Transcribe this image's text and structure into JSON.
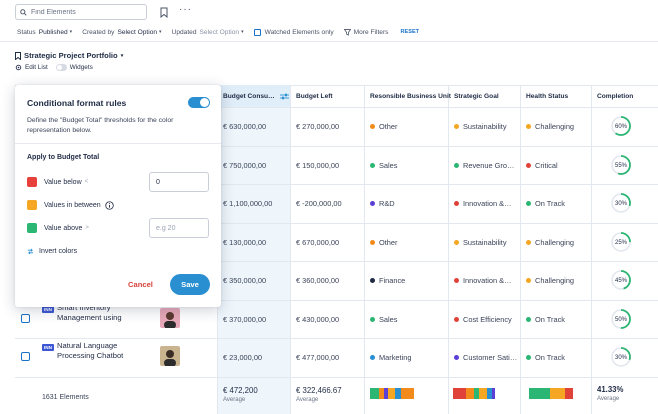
{
  "search": {
    "placeholder": "Find Elements"
  },
  "filters": {
    "status_label": "Status",
    "status_value": "Published",
    "created_label": "Created by",
    "created_value": "Select Option",
    "updated_label": "Updated",
    "updated_value": "Select Option",
    "watched_label": "Watched Elements only",
    "more_label": "More Filters",
    "reset_label": "RESET"
  },
  "portfolio": {
    "title": "Strategic Project Portfolio",
    "edit_label": "Edit List",
    "widgets_label": "Widgets"
  },
  "columns": {
    "budget_consumed": "Budget Consu…",
    "budget_left": "Budget Left",
    "business_unit": "Resonsible Business Unit",
    "strategic_goal": "Strategic Goal",
    "health": "Health Status",
    "completion": "Completion"
  },
  "rows": [
    {
      "consumed": "€ 630,000,00",
      "left": "€ 270,000,00",
      "unit": "Other",
      "unit_color": "#f28b1c",
      "goal": "Sustainability",
      "goal_color": "#f5a623",
      "health": "Challenging",
      "health_color": "#f5a623",
      "completion": "60%",
      "completion_value": 60
    },
    {
      "consumed": "€ 750,000,00",
      "left": "€ 150,000,00",
      "unit": "Sales",
      "unit_color": "#2bb673",
      "goal": "Revenue Gro…",
      "goal_color": "#2bb673",
      "health": "Critical",
      "health_color": "#e0423a",
      "completion": "55%",
      "completion_value": 55
    },
    {
      "consumed": "€ 1,100,000,00",
      "left": "€ -200,000,00",
      "unit": "R&D",
      "unit_color": "#5b3fd6",
      "goal": "Innovation &…",
      "goal_color": "#e0423a",
      "health": "On Track",
      "health_color": "#2bb673",
      "completion": "30%",
      "completion_value": 30
    },
    {
      "consumed": "€ 130,000,00",
      "left": "€ 670,000,00",
      "unit": "Other",
      "unit_color": "#f28b1c",
      "goal": "Sustainability",
      "goal_color": "#f5a623",
      "health": "Challenging",
      "health_color": "#f5a623",
      "completion": "25%",
      "completion_value": 25
    },
    {
      "consumed": "€ 350,000,00",
      "left": "€ 360,000,00",
      "unit": "Finance",
      "unit_color": "#1f2a44",
      "goal": "Innovation &…",
      "goal_color": "#e0423a",
      "health": "Challenging",
      "health_color": "#f5a623",
      "completion": "45%",
      "completion_value": 45
    },
    {
      "name": "Smart Inventory Management using",
      "badge": "INN",
      "consumed": "€ 370,000,00",
      "left": "€ 430,000,00",
      "unit": "Sales",
      "unit_color": "#2bb673",
      "goal": "Cost Efficiency",
      "goal_color": "#e0423a",
      "health": "On Track",
      "health_color": "#2bb673",
      "completion": "50%",
      "completion_value": 50
    },
    {
      "name": "Natural Language Processing Chatbot",
      "badge": "INN",
      "consumed": "€ 23,000,00",
      "left": "€ 477,000,00",
      "unit": "Marketing",
      "unit_color": "#2a8fd1",
      "goal": "Customer Sati…",
      "goal_color": "#5b3fd6",
      "health": "On Track",
      "health_color": "#2bb673",
      "completion": "30%",
      "completion_value": 30
    }
  ],
  "footer": {
    "count": "1631 Elements",
    "consumed": "€ 472,200",
    "consumed_sub": "Average",
    "left": "€ 322,466.67",
    "left_sub": "Average",
    "completion": "41.33%",
    "completion_sub": "Average"
  },
  "panel": {
    "title": "Conditional format rules",
    "description": "Define the \"Budget Total\" thresholds for the color representation below.",
    "apply_label": "Apply to Budget Total",
    "below_label": "Value below",
    "below_value": "0",
    "below_color": "#e8403a",
    "between_label": "Values in between",
    "between_color": "#f5a623",
    "above_label": "Value above",
    "above_placeholder": "e.g 20",
    "above_color": "#2bb673",
    "invert_label": "Invert colors",
    "cancel_label": "Cancel",
    "save_label": "Save"
  },
  "colors": {
    "accent": "#2a8fd1",
    "progress": "#2bb673",
    "track": "#e3e7ee"
  }
}
